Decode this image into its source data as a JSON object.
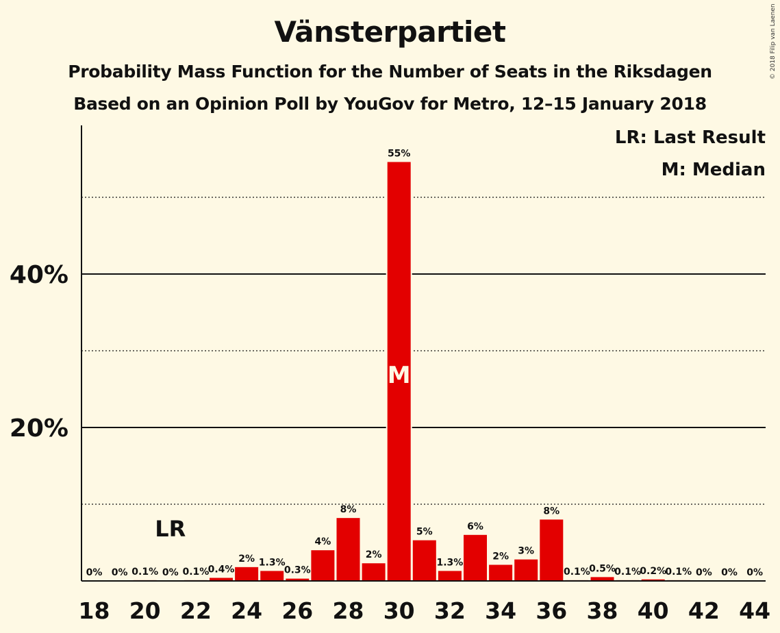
{
  "title": "Vänsterpartiet",
  "subtitle_1": "Probability Mass Function for the Number of Seats in the Riksdagen",
  "subtitle_2": "Based on an Opinion Poll by YouGov for Metro, 12–15 January 2018",
  "copyright": "© 2018 Filip van Laenen",
  "legend": {
    "last_result": "LR: Last Result",
    "median": "M: Median"
  },
  "colors": {
    "bar": "#E30000",
    "background": "#FEF9E4"
  },
  "chart_data": {
    "type": "bar",
    "x": [
      18,
      19,
      20,
      21,
      22,
      23,
      24,
      25,
      26,
      27,
      28,
      29,
      30,
      31,
      32,
      33,
      34,
      35,
      36,
      37,
      38,
      39,
      40,
      41,
      42,
      43,
      44
    ],
    "values": [
      0,
      0,
      0.1,
      0,
      0.1,
      0.4,
      1.8,
      1.3,
      0.3,
      4.0,
      8.2,
      2.3,
      54.6,
      5.3,
      1.3,
      6.0,
      2.1,
      2.8,
      8.0,
      0.1,
      0.5,
      0.1,
      0.2,
      0.1,
      0,
      0,
      0
    ],
    "value_labels": [
      "0%",
      "0%",
      "0.1%",
      "0%",
      "0.1%",
      "0.4%",
      "2%",
      "1.3%",
      "0.3%",
      "4%",
      "8%",
      "2%",
      "55%",
      "5%",
      "1.3%",
      "6%",
      "2%",
      "3%",
      "8%",
      "0.1%",
      "0.5%",
      "0.1%",
      "0.2%",
      "0.1%",
      "0%",
      "0%",
      "0%"
    ],
    "x_tick_labels": [
      "18",
      "20",
      "22",
      "24",
      "26",
      "28",
      "30",
      "32",
      "34",
      "36",
      "38",
      "40",
      "42",
      "44"
    ],
    "y_tick_labels": [
      "20%",
      "40%"
    ],
    "ylim": [
      0,
      60
    ],
    "y_solid_gridlines": [
      20,
      40
    ],
    "y_dotted_gridlines": [
      10,
      30,
      50
    ],
    "last_result": {
      "seats": 21,
      "label": "LR"
    },
    "median": {
      "seats": 30,
      "label": "M"
    }
  }
}
